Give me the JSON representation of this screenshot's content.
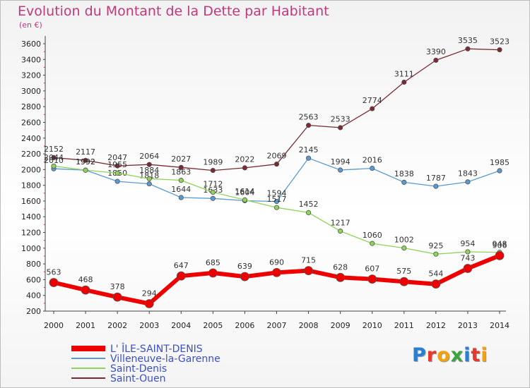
{
  "header": {
    "title": "Evolution du Montant de la Dette par Habitant",
    "subtitle": "(en €)"
  },
  "logo": {
    "text": "Proxiti",
    "letter_colors": [
      "#2a7fd4",
      "#e8372c",
      "#f2a20c",
      "#3aa63a",
      "#2a7fd4",
      "#e8372c",
      "#f2a20c"
    ]
  },
  "chart_data": {
    "type": "line",
    "x": [
      "2000",
      "2001",
      "2002",
      "2003",
      "2004",
      "2005",
      "2006",
      "2007",
      "2008",
      "2009",
      "2010",
      "2011",
      "2012",
      "2013",
      "2014"
    ],
    "ylim": [
      200,
      3700
    ],
    "yticks": [
      200,
      400,
      600,
      800,
      1000,
      1200,
      1400,
      1600,
      1800,
      2000,
      2200,
      2400,
      2600,
      2800,
      3000,
      3200,
      3400,
      3600
    ],
    "grid": false,
    "legend_position": "bottom-left",
    "series": [
      {
        "name": "Saint-Ouen",
        "color": "#7a2a32",
        "values": [
          2152,
          2117,
          2047,
          2064,
          2027,
          1989,
          2022,
          2069,
          2563,
          2533,
          2774,
          3111,
          3390,
          3535,
          3523
        ]
      },
      {
        "name": "Villeneuve-la-Garenne",
        "color": "#5a9ad0",
        "values": [
          2010,
          1992,
          1850,
          1818,
          1644,
          1633,
          1604,
          1594,
          2145,
          1994,
          2016,
          1838,
          1787,
          1843,
          1985
        ]
      },
      {
        "name": "Saint-Denis",
        "color": "#8fd45a",
        "values": [
          2044,
          1992,
          1955,
          1884,
          1863,
          1712,
          1614,
          1517,
          1452,
          1217,
          1060,
          1002,
          925,
          954,
          948
        ]
      },
      {
        "name": "L' ÎLE-SAINT-DENIS",
        "color": "#ee0000",
        "values": [
          563,
          468,
          378,
          294,
          647,
          685,
          639,
          690,
          715,
          628,
          607,
          575,
          544,
          743,
          906
        ]
      }
    ],
    "legend_order": [
      "L' ÎLE-SAINT-DENIS",
      "Villeneuve-la-Garenne",
      "Saint-Denis",
      "Saint-Ouen"
    ]
  }
}
